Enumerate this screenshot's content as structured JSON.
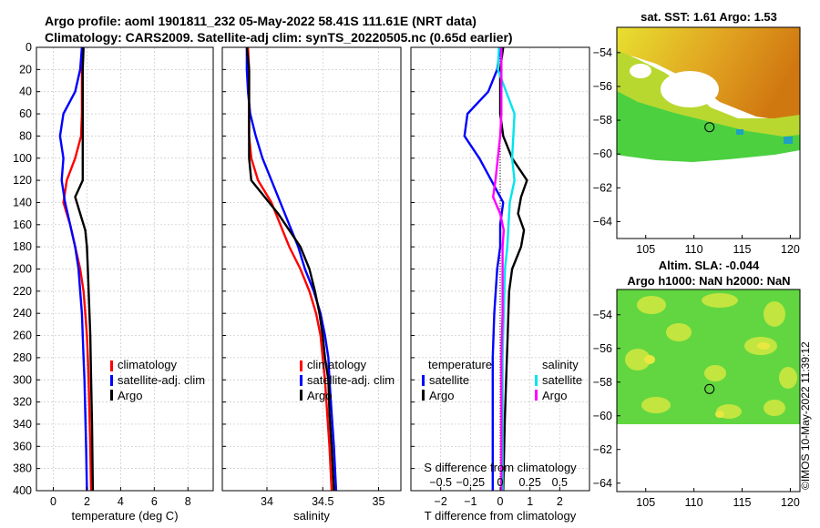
{
  "header": {
    "line1": "Argo profile: aoml 1901811_232 05-May-2022 58.41S 111.61E (NRT data)",
    "line2": "Climatology: CARS2009. Satellite-adj clim: synTS_20220505.nc (0.65d earlier)"
  },
  "credit": "©IMOS 10-May-2022 11:39:12",
  "chart_data": [
    {
      "id": "temperature_profile",
      "type": "line",
      "xlabel": "temperature (deg C)",
      "ylabel": "depth",
      "xlim": [
        -1,
        9.5
      ],
      "ylim": [
        400,
        0
      ],
      "xticks": [
        0,
        2,
        4,
        6,
        8
      ],
      "yticks": [
        0,
        20,
        40,
        60,
        80,
        100,
        120,
        140,
        160,
        180,
        200,
        220,
        240,
        260,
        280,
        300,
        320,
        340,
        360,
        380,
        400
      ],
      "grid": true,
      "legend": {
        "position": "right",
        "labels": [
          "climatology",
          "satellite-adj. clim",
          "Argo"
        ]
      },
      "series": [
        {
          "name": "climatology",
          "color": "#ff0000",
          "points": [
            [
              1.7,
              0
            ],
            [
              1.7,
              20
            ],
            [
              1.7,
              40
            ],
            [
              1.7,
              60
            ],
            [
              1.65,
              80
            ],
            [
              1.3,
              100
            ],
            [
              0.8,
              120
            ],
            [
              0.6,
              140
            ],
            [
              1.0,
              160
            ],
            [
              1.3,
              180
            ],
            [
              1.6,
              200
            ],
            [
              1.8,
              220
            ],
            [
              1.9,
              240
            ],
            [
              2.0,
              260
            ],
            [
              2.05,
              280
            ],
            [
              2.1,
              300
            ],
            [
              2.15,
              330
            ],
            [
              2.2,
              360
            ],
            [
              2.25,
              400
            ]
          ]
        },
        {
          "name": "satellite-adj. clim",
          "color": "#0000ff",
          "points": [
            [
              1.7,
              0
            ],
            [
              1.6,
              20
            ],
            [
              1.3,
              40
            ],
            [
              0.6,
              60
            ],
            [
              0.4,
              80
            ],
            [
              0.6,
              100
            ],
            [
              0.5,
              120
            ],
            [
              0.7,
              140
            ],
            [
              1.0,
              160
            ],
            [
              1.3,
              180
            ],
            [
              1.5,
              200
            ],
            [
              1.6,
              220
            ],
            [
              1.7,
              240
            ],
            [
              1.75,
              260
            ],
            [
              1.8,
              280
            ],
            [
              1.85,
              300
            ],
            [
              1.9,
              330
            ],
            [
              1.95,
              360
            ],
            [
              2.0,
              400
            ]
          ]
        },
        {
          "name": "Argo",
          "color": "#000000",
          "points": [
            [
              1.8,
              0
            ],
            [
              1.75,
              20
            ],
            [
              1.75,
              40
            ],
            [
              1.75,
              60
            ],
            [
              1.75,
              80
            ],
            [
              1.75,
              100
            ],
            [
              1.75,
              120
            ],
            [
              1.3,
              135
            ],
            [
              1.6,
              150
            ],
            [
              1.9,
              165
            ],
            [
              2.0,
              180
            ],
            [
              2.05,
              200
            ],
            [
              2.1,
              220
            ],
            [
              2.15,
              240
            ],
            [
              2.2,
              260
            ],
            [
              2.25,
              300
            ],
            [
              2.3,
              340
            ],
            [
              2.35,
              400
            ]
          ]
        }
      ]
    },
    {
      "id": "salinity_profile",
      "type": "line",
      "xlabel": "salinity",
      "ylabel": "depth",
      "xlim": [
        33.6,
        35.2
      ],
      "ylim": [
        400,
        0
      ],
      "xticks": [
        34,
        34.5,
        35
      ],
      "grid": true,
      "legend": {
        "position": "right",
        "labels": [
          "climatology",
          "satellite-adj. clim",
          "Argo"
        ]
      },
      "series": [
        {
          "name": "climatology",
          "color": "#ff0000",
          "points": [
            [
              33.83,
              0
            ],
            [
              33.84,
              20
            ],
            [
              33.84,
              40
            ],
            [
              33.84,
              60
            ],
            [
              33.84,
              80
            ],
            [
              33.86,
              100
            ],
            [
              33.92,
              120
            ],
            [
              34.04,
              140
            ],
            [
              34.12,
              160
            ],
            [
              34.2,
              180
            ],
            [
              34.3,
              200
            ],
            [
              34.38,
              220
            ],
            [
              34.44,
              240
            ],
            [
              34.48,
              260
            ],
            [
              34.5,
              280
            ],
            [
              34.52,
              300
            ],
            [
              34.54,
              330
            ],
            [
              34.56,
              360
            ],
            [
              34.58,
              400
            ]
          ]
        },
        {
          "name": "satellite-adj. clim",
          "color": "#0000ff",
          "points": [
            [
              33.82,
              0
            ],
            [
              33.82,
              20
            ],
            [
              33.83,
              40
            ],
            [
              33.85,
              60
            ],
            [
              33.9,
              80
            ],
            [
              33.96,
              100
            ],
            [
              34.04,
              120
            ],
            [
              34.12,
              140
            ],
            [
              34.2,
              160
            ],
            [
              34.28,
              180
            ],
            [
              34.34,
              200
            ],
            [
              34.42,
              220
            ],
            [
              34.48,
              240
            ],
            [
              34.52,
              260
            ],
            [
              34.55,
              280
            ],
            [
              34.56,
              300
            ],
            [
              34.58,
              330
            ],
            [
              34.6,
              360
            ],
            [
              34.62,
              400
            ]
          ]
        },
        {
          "name": "Argo",
          "color": "#000000",
          "points": [
            [
              33.82,
              0
            ],
            [
              33.84,
              20
            ],
            [
              33.84,
              40
            ],
            [
              33.84,
              60
            ],
            [
              33.84,
              80
            ],
            [
              33.84,
              100
            ],
            [
              33.86,
              120
            ],
            [
              33.98,
              135
            ],
            [
              34.1,
              150
            ],
            [
              34.2,
              165
            ],
            [
              34.3,
              180
            ],
            [
              34.38,
              200
            ],
            [
              34.43,
              220
            ],
            [
              34.47,
              240
            ],
            [
              34.5,
              260
            ],
            [
              34.52,
              280
            ],
            [
              34.55,
              300
            ],
            [
              34.56,
              330
            ],
            [
              34.58,
              360
            ],
            [
              34.6,
              400
            ]
          ]
        }
      ]
    },
    {
      "id": "difference_profile",
      "type": "line",
      "xlabel": "T difference from climatology",
      "x2label": "S difference from climatology",
      "xlim": [
        -3,
        3
      ],
      "x2lim": [
        -0.75,
        0.75
      ],
      "ylim": [
        400,
        0
      ],
      "xticks": [
        -2,
        -1,
        0,
        1,
        2
      ],
      "x2ticks": [
        -0.5,
        -0.25,
        0,
        0.25,
        0.5
      ],
      "x2ticklabels": [
        "-0.5",
        "-0.25",
        "0",
        "0.25",
        "0.5"
      ],
      "grid": true,
      "legend": {
        "position": "bottom",
        "titles": [
          "temperature",
          "salinity"
        ],
        "labels": [
          "satellite",
          "Argo",
          "satellite",
          "Argo"
        ]
      },
      "series": [
        {
          "name": "temperature satellite",
          "color": "#0000ff",
          "axis": "T",
          "points": [
            [
              0,
              0
            ],
            [
              -0.1,
              20
            ],
            [
              -0.4,
              40
            ],
            [
              -1.1,
              60
            ],
            [
              -1.2,
              80
            ],
            [
              -0.7,
              100
            ],
            [
              -0.3,
              120
            ],
            [
              0.1,
              140
            ],
            [
              0,
              160
            ],
            [
              0,
              180
            ],
            [
              -0.1,
              200
            ],
            [
              -0.2,
              240
            ],
            [
              -0.25,
              280
            ],
            [
              -0.25,
              320
            ],
            [
              -0.25,
              400
            ]
          ]
        },
        {
          "name": "temperature Argo",
          "color": "#000000",
          "axis": "T",
          "points": [
            [
              0.1,
              0
            ],
            [
              0,
              20
            ],
            [
              0,
              40
            ],
            [
              0,
              60
            ],
            [
              0.1,
              80
            ],
            [
              0.4,
              100
            ],
            [
              0.9,
              120
            ],
            [
              0.7,
              135
            ],
            [
              0.6,
              150
            ],
            [
              0.8,
              165
            ],
            [
              0.7,
              180
            ],
            [
              0.4,
              200
            ],
            [
              0.3,
              220
            ],
            [
              0.25,
              260
            ],
            [
              0.2,
              300
            ],
            [
              0.15,
              340
            ],
            [
              0.1,
              400
            ]
          ]
        },
        {
          "name": "salinity satellite",
          "color": "#00e5ee",
          "axis": "S",
          "points": [
            [
              -0.01,
              0
            ],
            [
              -0.02,
              20
            ],
            [
              0.05,
              40
            ],
            [
              0.12,
              60
            ],
            [
              0.11,
              80
            ],
            [
              0.1,
              100
            ],
            [
              0.12,
              120
            ],
            [
              0.08,
              140
            ],
            [
              0.07,
              160
            ],
            [
              0.06,
              180
            ],
            [
              0.04,
              200
            ],
            [
              0.03,
              240
            ],
            [
              0.02,
              280
            ],
            [
              0.02,
              320
            ],
            [
              0.02,
              400
            ]
          ]
        },
        {
          "name": "salinity Argo",
          "color": "#ff00ff",
          "axis": "S",
          "points": [
            [
              0.01,
              0
            ],
            [
              0.01,
              20
            ],
            [
              0.01,
              40
            ],
            [
              0.01,
              60
            ],
            [
              0,
              80
            ],
            [
              -0.02,
              100
            ],
            [
              -0.04,
              120
            ],
            [
              -0.06,
              135
            ],
            [
              0,
              150
            ],
            [
              0.03,
              165
            ],
            [
              0.02,
              180
            ],
            [
              0.02,
              200
            ],
            [
              0.02,
              240
            ],
            [
              0.01,
              280
            ],
            [
              0.01,
              320
            ],
            [
              0.01,
              400
            ]
          ]
        }
      ]
    },
    {
      "id": "sst_map",
      "type": "heatmap",
      "title": "sat. SST: 1.61 Argo: 1.53",
      "xlim": [
        102,
        121
      ],
      "ylim": [
        -65,
        -52.5
      ],
      "xticks": [
        105,
        110,
        115,
        120
      ],
      "yticks": [
        -54,
        -56,
        -58,
        -60,
        -62,
        -64
      ],
      "profile_location": [
        111.61,
        -58.41
      ]
    },
    {
      "id": "sla_map",
      "type": "heatmap",
      "title_line1": "Altim. SLA: -0.044",
      "title_line2": "Argo h1000: NaN h2000: NaN",
      "xlim": [
        102,
        121
      ],
      "ylim": [
        -64.5,
        -52.5
      ],
      "xticks": [
        105,
        110,
        115,
        120
      ],
      "yticks": [
        -54,
        -56,
        -58,
        -60,
        -62,
        -64
      ],
      "profile_location": [
        111.61,
        -58.41
      ]
    }
  ]
}
